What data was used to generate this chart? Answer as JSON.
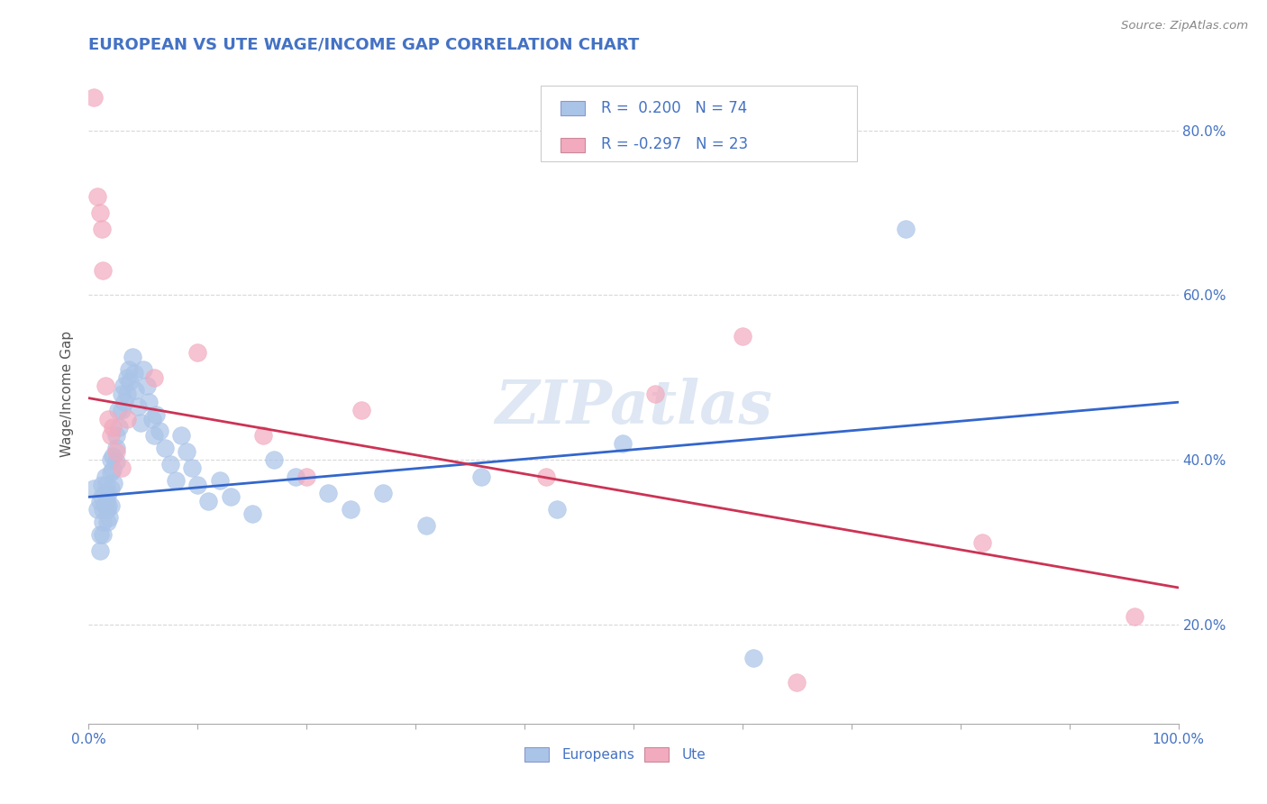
{
  "title": "EUROPEAN VS UTE WAGE/INCOME GAP CORRELATION CHART",
  "source": "Source: ZipAtlas.com",
  "ylabel": "Wage/Income Gap",
  "watermark": "ZIPatlas",
  "blue_R": 0.2,
  "blue_N": 74,
  "pink_R": -0.297,
  "pink_N": 23,
  "blue_color": "#aac4e8",
  "pink_color": "#f2aabe",
  "blue_line_color": "#3366cc",
  "pink_line_color": "#cc3355",
  "title_color": "#4472c4",
  "label_color": "#4472c4",
  "axis_color": "#aaaaaa",
  "grid_color": "#d8d8d8",
  "background_color": "#ffffff",
  "watermark_color": "#c8d8ec",
  "xlim": [
    0.0,
    1.0
  ],
  "ylim": [
    0.08,
    0.88
  ],
  "yticks": [
    0.2,
    0.4,
    0.6,
    0.8
  ],
  "ytick_labels": [
    "20.0%",
    "40.0%",
    "60.0%",
    "80.0%"
  ],
  "eu_line_x": [
    0.0,
    1.0
  ],
  "eu_line_y": [
    0.355,
    0.47
  ],
  "ute_line_x": [
    0.0,
    1.0
  ],
  "ute_line_y": [
    0.475,
    0.245
  ],
  "europeans_x": [
    0.005,
    0.008,
    0.01,
    0.01,
    0.01,
    0.012,
    0.012,
    0.013,
    0.013,
    0.013,
    0.015,
    0.015,
    0.015,
    0.016,
    0.016,
    0.017,
    0.017,
    0.018,
    0.018,
    0.019,
    0.02,
    0.02,
    0.02,
    0.02,
    0.022,
    0.022,
    0.023,
    0.025,
    0.025,
    0.025,
    0.027,
    0.028,
    0.03,
    0.03,
    0.032,
    0.033,
    0.035,
    0.035,
    0.037,
    0.038,
    0.04,
    0.042,
    0.043,
    0.045,
    0.048,
    0.05,
    0.053,
    0.055,
    0.058,
    0.06,
    0.062,
    0.065,
    0.07,
    0.075,
    0.08,
    0.085,
    0.09,
    0.095,
    0.1,
    0.11,
    0.12,
    0.13,
    0.15,
    0.17,
    0.19,
    0.22,
    0.24,
    0.27,
    0.31,
    0.36,
    0.43,
    0.49,
    0.61,
    0.75
  ],
  "europeans_y": [
    0.365,
    0.34,
    0.35,
    0.31,
    0.29,
    0.37,
    0.355,
    0.34,
    0.325,
    0.31,
    0.38,
    0.36,
    0.345,
    0.37,
    0.35,
    0.34,
    0.325,
    0.36,
    0.345,
    0.33,
    0.4,
    0.385,
    0.365,
    0.345,
    0.405,
    0.388,
    0.372,
    0.43,
    0.415,
    0.398,
    0.46,
    0.44,
    0.48,
    0.46,
    0.49,
    0.47,
    0.5,
    0.48,
    0.51,
    0.495,
    0.525,
    0.505,
    0.485,
    0.465,
    0.445,
    0.51,
    0.49,
    0.47,
    0.45,
    0.43,
    0.455,
    0.435,
    0.415,
    0.395,
    0.375,
    0.43,
    0.41,
    0.39,
    0.37,
    0.35,
    0.375,
    0.355,
    0.335,
    0.4,
    0.38,
    0.36,
    0.34,
    0.36,
    0.32,
    0.38,
    0.34,
    0.42,
    0.16,
    0.68
  ],
  "ute_x": [
    0.005,
    0.008,
    0.01,
    0.012,
    0.013,
    0.015,
    0.018,
    0.02,
    0.022,
    0.025,
    0.03,
    0.035,
    0.06,
    0.1,
    0.16,
    0.2,
    0.25,
    0.42,
    0.52,
    0.6,
    0.65,
    0.82,
    0.96
  ],
  "ute_y": [
    0.84,
    0.72,
    0.7,
    0.68,
    0.63,
    0.49,
    0.45,
    0.43,
    0.44,
    0.41,
    0.39,
    0.45,
    0.5,
    0.53,
    0.43,
    0.38,
    0.46,
    0.38,
    0.48,
    0.55,
    0.13,
    0.3,
    0.21
  ]
}
